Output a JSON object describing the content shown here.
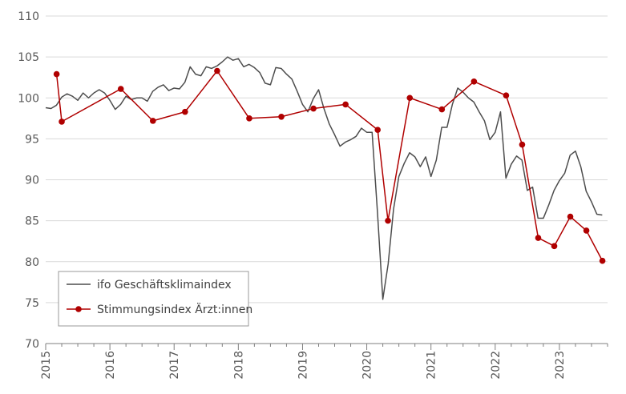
{
  "chart_data": {
    "type": "line",
    "title": "",
    "xlabel": "",
    "ylabel": "",
    "ylim": [
      70,
      110
    ],
    "xlim": [
      2015.0,
      2023.75
    ],
    "yticks": [
      70,
      75,
      80,
      85,
      90,
      95,
      100,
      105,
      110
    ],
    "ytick_labels": [
      "70",
      "75",
      "80",
      "85",
      "90",
      "95",
      "100",
      "105",
      "110"
    ],
    "xticks": [
      2015,
      2016,
      2017,
      2018,
      2019,
      2020,
      2021,
      2022,
      2023
    ],
    "xtick_labels": [
      "2015",
      "2016",
      "2017",
      "2018",
      "2019",
      "2020",
      "2021",
      "2022",
      "2023"
    ],
    "grid": "horizontal",
    "legend_position": "bottom-left",
    "series": [
      {
        "name": "ifo Geschäftsklimaindex",
        "color": "#4d4d4d",
        "marker": "none",
        "x": [
          2015.0,
          2015.083,
          2015.167,
          2015.25,
          2015.333,
          2015.417,
          2015.5,
          2015.583,
          2015.667,
          2015.75,
          2015.833,
          2015.917,
          2016.0,
          2016.083,
          2016.167,
          2016.25,
          2016.333,
          2016.417,
          2016.5,
          2016.583,
          2016.667,
          2016.75,
          2016.833,
          2016.917,
          2017.0,
          2017.083,
          2017.167,
          2017.25,
          2017.333,
          2017.417,
          2017.5,
          2017.583,
          2017.667,
          2017.75,
          2017.833,
          2017.917,
          2018.0,
          2018.083,
          2018.167,
          2018.25,
          2018.333,
          2018.417,
          2018.5,
          2018.583,
          2018.667,
          2018.75,
          2018.833,
          2018.917,
          2019.0,
          2019.083,
          2019.167,
          2019.25,
          2019.333,
          2019.417,
          2019.5,
          2019.583,
          2019.667,
          2019.75,
          2019.833,
          2019.917,
          2020.0,
          2020.083,
          2020.167,
          2020.25,
          2020.333,
          2020.417,
          2020.5,
          2020.583,
          2020.667,
          2020.75,
          2020.833,
          2020.917,
          2021.0,
          2021.083,
          2021.167,
          2021.25,
          2021.333,
          2021.417,
          2021.5,
          2021.583,
          2021.667,
          2021.75,
          2021.833,
          2021.917,
          2022.0,
          2022.083,
          2022.167,
          2022.25,
          2022.333,
          2022.417,
          2022.5,
          2022.583,
          2022.667,
          2022.75,
          2022.833,
          2022.917,
          2023.0,
          2023.083,
          2023.167,
          2023.25,
          2023.333,
          2023.417,
          2023.5,
          2023.583,
          2023.667
        ],
        "values": [
          98.8,
          98.7,
          99.1,
          100.1,
          100.5,
          100.2,
          99.7,
          100.6,
          100.0,
          100.6,
          101.0,
          100.6,
          99.7,
          98.6,
          99.2,
          100.2,
          99.8,
          100.0,
          100.0,
          99.6,
          100.8,
          101.3,
          101.6,
          100.9,
          101.2,
          101.1,
          101.9,
          103.8,
          102.9,
          102.7,
          103.8,
          103.6,
          103.9,
          104.4,
          105.0,
          104.6,
          104.8,
          103.8,
          104.1,
          103.7,
          103.1,
          101.8,
          101.6,
          103.7,
          103.6,
          102.9,
          102.3,
          100.8,
          99.2,
          98.3,
          99.9,
          101.0,
          98.7,
          96.8,
          95.5,
          94.1,
          94.6,
          94.9,
          95.3,
          96.3,
          95.8,
          95.8,
          86.0,
          75.4,
          79.7,
          86.4,
          90.4,
          92.0,
          93.3,
          92.8,
          91.6,
          92.8,
          90.4,
          92.4,
          96.4,
          96.4,
          99.2,
          101.2,
          100.7,
          100.0,
          99.5,
          98.3,
          97.2,
          94.9,
          95.8,
          98.3,
          90.2,
          91.9,
          92.9,
          92.4,
          88.7,
          89.1,
          85.3,
          85.3,
          86.9,
          88.7,
          89.9,
          90.8,
          93.0,
          93.5,
          91.6,
          88.6,
          87.3,
          85.8,
          85.7
        ]
      },
      {
        "name": "Stimmungsindex Ärzt:innen",
        "color": "#b00000",
        "marker": "circle",
        "x": [
          2015.17,
          2015.25,
          2016.17,
          2016.67,
          2017.17,
          2017.67,
          2018.17,
          2018.67,
          2019.17,
          2019.67,
          2020.17,
          2020.33,
          2020.67,
          2021.17,
          2021.67,
          2022.17,
          2022.42,
          2022.67,
          2022.92,
          2023.17,
          2023.42,
          2023.67
        ],
        "values": [
          102.9,
          97.1,
          101.1,
          97.2,
          98.3,
          103.3,
          97.5,
          97.7,
          98.7,
          99.2,
          96.1,
          85.0,
          100.0,
          98.6,
          102.0,
          100.3,
          94.3,
          82.9,
          81.9,
          85.5,
          83.8,
          80.1
        ]
      }
    ]
  }
}
